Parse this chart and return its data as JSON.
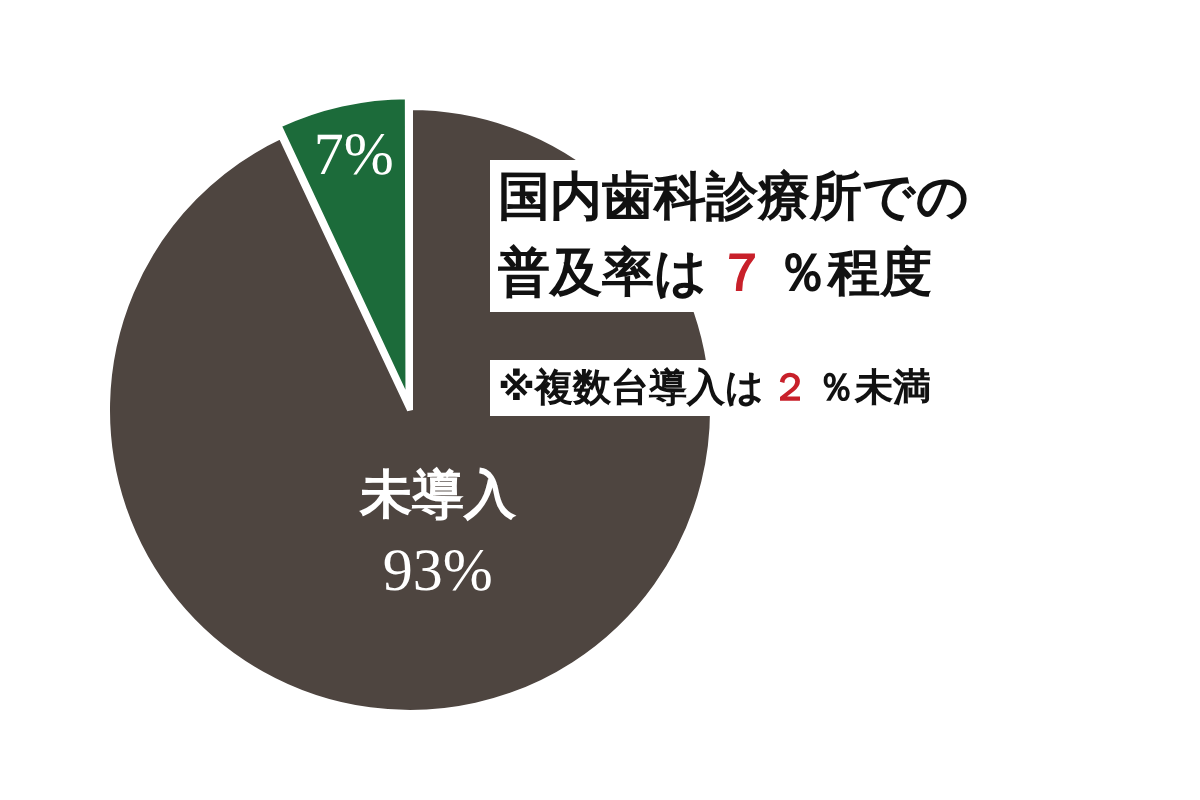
{
  "chart_data": {
    "type": "pie",
    "categories": [
      null,
      "未導入"
    ],
    "values": [
      7,
      93
    ],
    "colors": [
      "#1c6b3a",
      "#4e4540"
    ],
    "data_labels": true,
    "value_labels": [
      "7%",
      "93%"
    ],
    "annotations": [
      "国内歯科診療所での普及率は７％程度",
      "※複数台導入は２％未満"
    ]
  }
}
